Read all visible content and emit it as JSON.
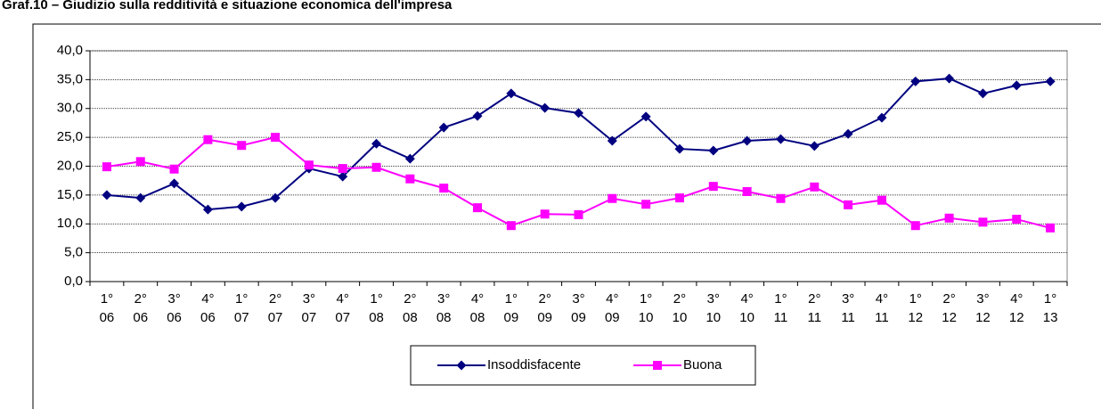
{
  "chart_data": {
    "type": "line",
    "title": "Graf.10 – Giudizio sulla redditività e situazione economica dell'impresa",
    "categories": [
      "1° 06",
      "2° 06",
      "3° 06",
      "4° 06",
      "1° 07",
      "2° 07",
      "3° 07",
      "4° 07",
      "1° 08",
      "2° 08",
      "3° 08",
      "4° 08",
      "1° 09",
      "2° 09",
      "3° 09",
      "4° 09",
      "1° 10",
      "2° 10",
      "3° 10",
      "4° 10",
      "1° 11",
      "2° 11",
      "3° 11",
      "4° 11",
      "1° 12",
      "2° 12",
      "3° 12",
      "4° 12",
      "1° 13"
    ],
    "series": [
      {
        "name": "Insoddisfacente",
        "color": "#000080",
        "marker": "diamond",
        "values": [
          15.0,
          14.5,
          17.0,
          12.5,
          13.0,
          14.5,
          19.6,
          18.2,
          23.9,
          21.3,
          26.7,
          28.7,
          32.6,
          30.1,
          29.2,
          24.4,
          28.6,
          23.0,
          22.7,
          24.4,
          24.7,
          23.5,
          25.6,
          28.4,
          34.7,
          35.2,
          32.6,
          34.0,
          34.7
        ]
      },
      {
        "name": "Buona",
        "color": "#ff00ff",
        "marker": "square",
        "values": [
          19.9,
          20.8,
          19.5,
          24.6,
          23.6,
          25.0,
          20.2,
          19.6,
          19.8,
          17.8,
          16.2,
          12.8,
          9.7,
          11.7,
          11.6,
          14.4,
          13.4,
          14.5,
          16.5,
          15.6,
          14.4,
          16.4,
          13.3,
          14.1,
          9.7,
          11.0,
          10.3,
          10.8,
          9.3
        ]
      }
    ],
    "ylim": [
      0,
      40
    ],
    "yticks": [
      {
        "value": 0,
        "label": "0,0"
      },
      {
        "value": 5,
        "label": "5,0"
      },
      {
        "value": 10,
        "label": "10,0"
      },
      {
        "value": 15,
        "label": "15,0"
      },
      {
        "value": 20,
        "label": "20,0"
      },
      {
        "value": 25,
        "label": "25,0"
      },
      {
        "value": 30,
        "label": "30,0"
      },
      {
        "value": 35,
        "label": "35,0"
      },
      {
        "value": 40,
        "label": "40,0"
      }
    ],
    "grid": true,
    "legend": "bottom"
  }
}
